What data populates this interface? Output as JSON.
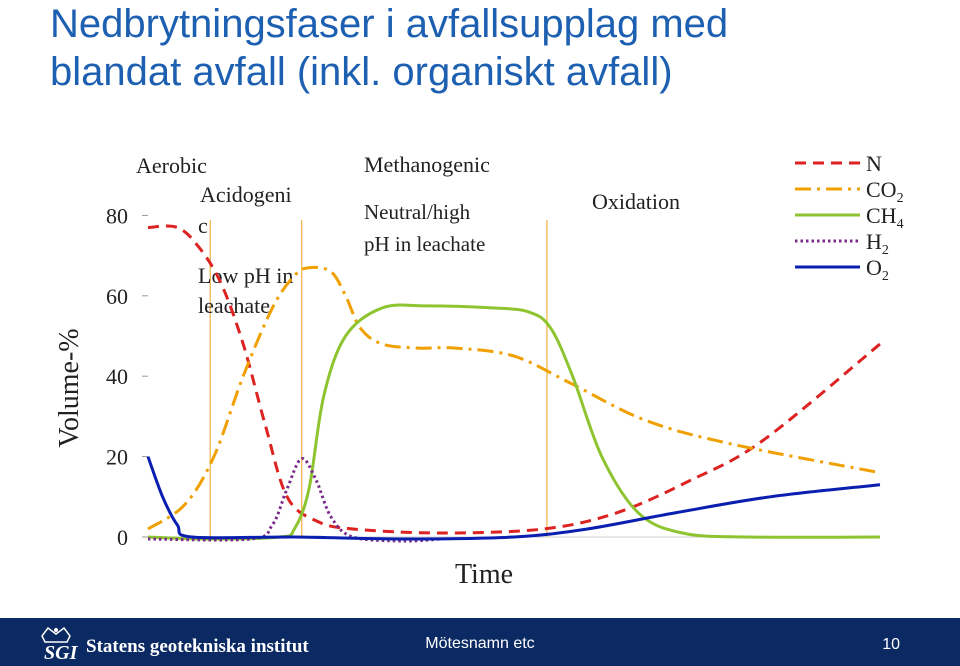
{
  "slide": {
    "title_line1": "Nedbrytningsfaser i avfallsupplag med",
    "title_line2": "blandat avfall (inkl. organiskt avfall)"
  },
  "footer": {
    "logo_text": "SGI",
    "organization": "Statens geotekniska institut",
    "meeting": "Mötesnamn etc",
    "page_number": "10",
    "background_color": "#0b2a63"
  },
  "chart_data": {
    "type": "line",
    "ylabel": "Volume-%",
    "xlabel": "Time",
    "yticks": [
      "0",
      "20",
      "40",
      "60",
      "80"
    ],
    "ylim": [
      0,
      100
    ],
    "xlim": [
      0,
      100
    ],
    "phases": {
      "aerobic": "Aerobic",
      "acidogenic_l1": "Acidogeni",
      "acidogenic_l2": "c",
      "acidogenic_note_l1": "Low pH in",
      "acidogenic_note_l2": "leachate",
      "methanogenic": "Methanogenic",
      "methanogenic_note_l1": "Neutral/high",
      "methanogenic_note_l2": "pH in leachate",
      "oxidation": "Oxidation"
    },
    "phase_boundaries": [
      8.5,
      21,
      54.5
    ],
    "legend_position": "top-right",
    "series": [
      {
        "name": "N",
        "sub": "",
        "color": "#dd2222",
        "style": "dashed",
        "points": [
          [
            0,
            77
          ],
          [
            4,
            77
          ],
          [
            7,
            72
          ],
          [
            10,
            63
          ],
          [
            13,
            48
          ],
          [
            16,
            28
          ],
          [
            19,
            10
          ],
          [
            23,
            4
          ],
          [
            28,
            2
          ],
          [
            40,
            1
          ],
          [
            54,
            2
          ],
          [
            64,
            6
          ],
          [
            74,
            14
          ],
          [
            84,
            24
          ],
          [
            100,
            48
          ]
        ]
      },
      {
        "name": "CO",
        "sub": "2",
        "color": "#f0a000",
        "style": "dashdot",
        "points": [
          [
            0,
            2
          ],
          [
            5,
            8
          ],
          [
            9,
            20
          ],
          [
            13,
            40
          ],
          [
            17,
            57
          ],
          [
            20,
            65
          ],
          [
            22,
            67
          ],
          [
            25,
            66
          ],
          [
            27,
            60
          ],
          [
            29,
            52
          ],
          [
            32,
            48
          ],
          [
            37,
            47
          ],
          [
            42,
            47
          ],
          [
            50,
            45
          ],
          [
            58,
            38
          ],
          [
            68,
            29
          ],
          [
            80,
            23
          ],
          [
            100,
            16
          ]
        ]
      },
      {
        "name": "CH",
        "sub": "4",
        "color": "#8ec430",
        "style": "solid",
        "points": [
          [
            0,
            0
          ],
          [
            8,
            -0.5
          ],
          [
            18,
            0
          ],
          [
            20,
            2
          ],
          [
            22,
            12
          ],
          [
            24,
            35
          ],
          [
            27,
            50
          ],
          [
            32,
            57
          ],
          [
            38,
            57.5
          ],
          [
            47,
            57
          ],
          [
            52,
            56
          ],
          [
            55,
            52
          ],
          [
            58,
            40
          ],
          [
            62,
            20
          ],
          [
            67,
            6
          ],
          [
            73,
            1
          ],
          [
            82,
            0
          ],
          [
            100,
            0
          ]
        ]
      },
      {
        "name": "H",
        "sub": "2",
        "color": "#7a2a8a",
        "style": "dotted",
        "points": [
          [
            0,
            -0.5
          ],
          [
            14,
            -0.5
          ],
          [
            17,
            3
          ],
          [
            19,
            12
          ],
          [
            21,
            19.5
          ],
          [
            23,
            14
          ],
          [
            25,
            5
          ],
          [
            28,
            0
          ],
          [
            35,
            -1
          ],
          [
            40,
            -0.5
          ]
        ]
      },
      {
        "name": "O",
        "sub": "2",
        "color": "#0a1fb0",
        "style": "solid",
        "points": [
          [
            0,
            20
          ],
          [
            2,
            10
          ],
          [
            4,
            3
          ],
          [
            6,
            0
          ],
          [
            20,
            0
          ],
          [
            35,
            -0.5
          ],
          [
            50,
            0
          ],
          [
            60,
            2
          ],
          [
            72,
            6
          ],
          [
            85,
            10
          ],
          [
            100,
            13
          ]
        ]
      }
    ]
  }
}
